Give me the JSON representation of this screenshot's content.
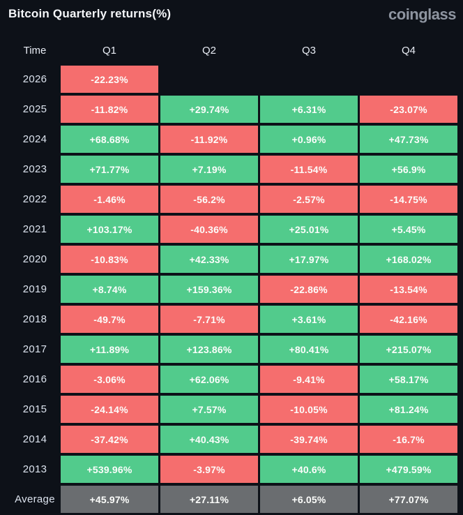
{
  "header": {
    "title": "Bitcoin Quarterly returns(%)",
    "logo": "coinglass"
  },
  "columns": [
    "Time",
    "Q1",
    "Q2",
    "Q3",
    "Q4"
  ],
  "colors": {
    "background": "#0D1118",
    "positive": "#52CB8C",
    "negative": "#F56E6E",
    "average": "#6A6D70",
    "cell_text": "#FCFDFB"
  },
  "chart_data": {
    "type": "heatmap",
    "title": "Bitcoin Quarterly returns(%)",
    "unit": "%",
    "columns": [
      "Q1",
      "Q2",
      "Q3",
      "Q4"
    ],
    "color_rule": "negative values red, positive values green, Average row gray",
    "rows": [
      {
        "label": "2026",
        "values": [
          "-22.23%",
          null,
          null,
          null
        ]
      },
      {
        "label": "2025",
        "values": [
          "-11.82%",
          "+29.74%",
          "+6.31%",
          "-23.07%"
        ]
      },
      {
        "label": "2024",
        "values": [
          "+68.68%",
          "-11.92%",
          "+0.96%",
          "+47.73%"
        ]
      },
      {
        "label": "2023",
        "values": [
          "+71.77%",
          "+7.19%",
          "-11.54%",
          "+56.9%"
        ]
      },
      {
        "label": "2022",
        "values": [
          "-1.46%",
          "-56.2%",
          "-2.57%",
          "-14.75%"
        ]
      },
      {
        "label": "2021",
        "values": [
          "+103.17%",
          "-40.36%",
          "+25.01%",
          "+5.45%"
        ]
      },
      {
        "label": "2020",
        "values": [
          "-10.83%",
          "+42.33%",
          "+17.97%",
          "+168.02%"
        ]
      },
      {
        "label": "2019",
        "values": [
          "+8.74%",
          "+159.36%",
          "-22.86%",
          "-13.54%"
        ]
      },
      {
        "label": "2018",
        "values": [
          "-49.7%",
          "-7.71%",
          "+3.61%",
          "-42.16%"
        ]
      },
      {
        "label": "2017",
        "values": [
          "+11.89%",
          "+123.86%",
          "+80.41%",
          "+215.07%"
        ]
      },
      {
        "label": "2016",
        "values": [
          "-3.06%",
          "+62.06%",
          "-9.41%",
          "+58.17%"
        ]
      },
      {
        "label": "2015",
        "values": [
          "-24.14%",
          "+7.57%",
          "-10.05%",
          "+81.24%"
        ]
      },
      {
        "label": "2014",
        "values": [
          "-37.42%",
          "+40.43%",
          "-39.74%",
          "-16.7%"
        ]
      },
      {
        "label": "2013",
        "values": [
          "+539.96%",
          "-3.97%",
          "+40.6%",
          "+479.59%"
        ]
      },
      {
        "label": "Average",
        "values": [
          "+45.97%",
          "+27.11%",
          "+6.05%",
          "+77.07%"
        ],
        "is_average": true
      }
    ]
  }
}
